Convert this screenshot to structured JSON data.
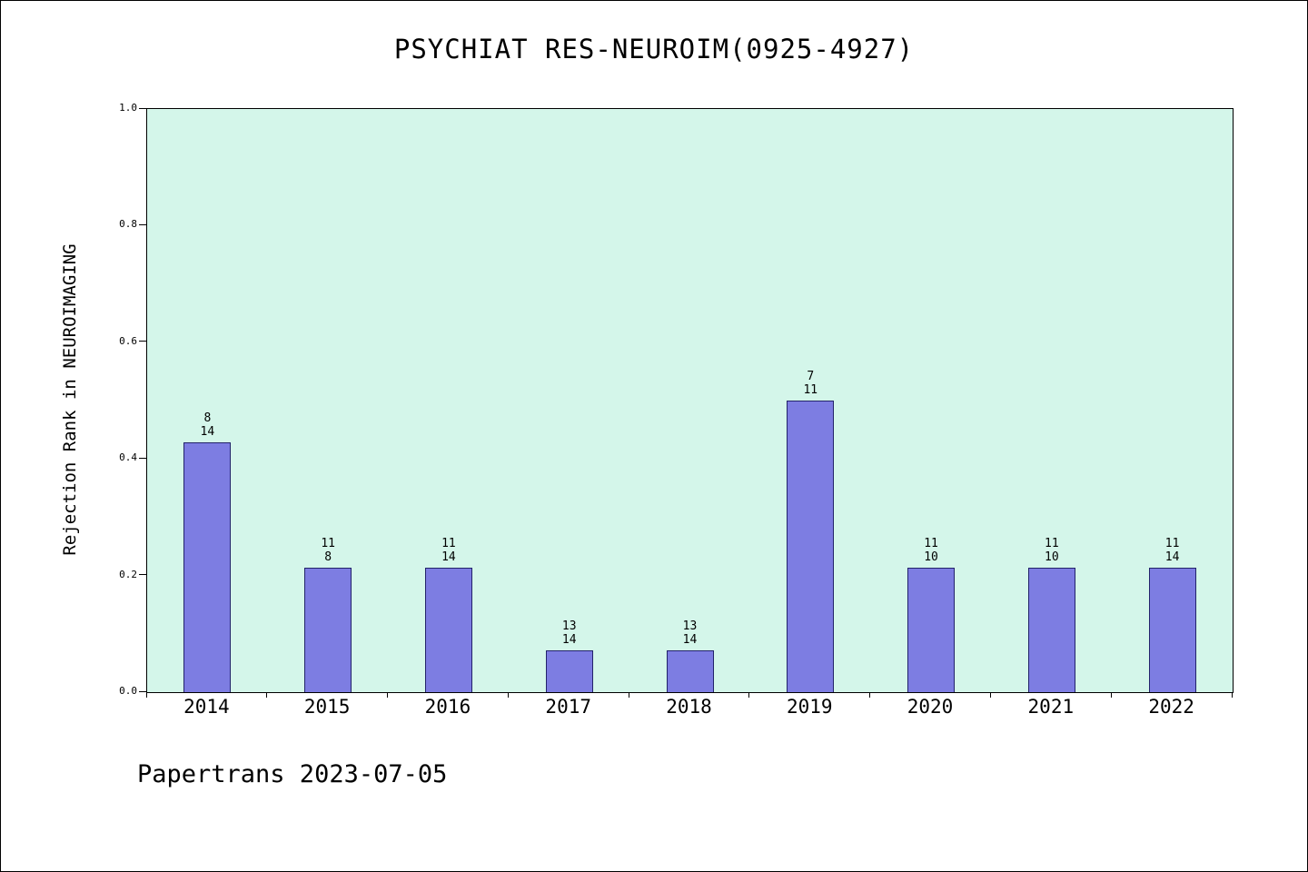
{
  "chart_data": {
    "type": "bar",
    "title": "PSYCHIAT RES-NEUROIM(0925-4927)",
    "ylabel": "Rejection Rank in NEUROIMAGING",
    "xlabel": "",
    "ylim": [
      0.0,
      1.0
    ],
    "ytick_labels": [
      "0.0",
      "0.2",
      "0.4",
      "0.6",
      "0.8",
      "1.0"
    ],
    "grid": false,
    "legend": null,
    "categories": [
      "2014",
      "2015",
      "2016",
      "2017",
      "2018",
      "2019",
      "2020",
      "2021",
      "2022"
    ],
    "values": [
      0.429,
      0.214,
      0.214,
      0.071,
      0.071,
      0.5,
      0.214,
      0.214,
      0.214
    ],
    "bar_labels": [
      [
        "8",
        "14"
      ],
      [
        "11",
        "8"
      ],
      [
        "11",
        "14"
      ],
      [
        "13",
        "14"
      ],
      [
        "13",
        "14"
      ],
      [
        "7",
        "11"
      ],
      [
        "11",
        "10"
      ],
      [
        "11",
        "10"
      ],
      [
        "11",
        "14"
      ]
    ],
    "colors": {
      "plot_bg": "#d4f6ea",
      "bar_fill": "#7d7de2",
      "bar_edge": "#22226a",
      "axis": "#000000"
    }
  },
  "footer": {
    "text": "Papertrans 2023-07-05"
  }
}
